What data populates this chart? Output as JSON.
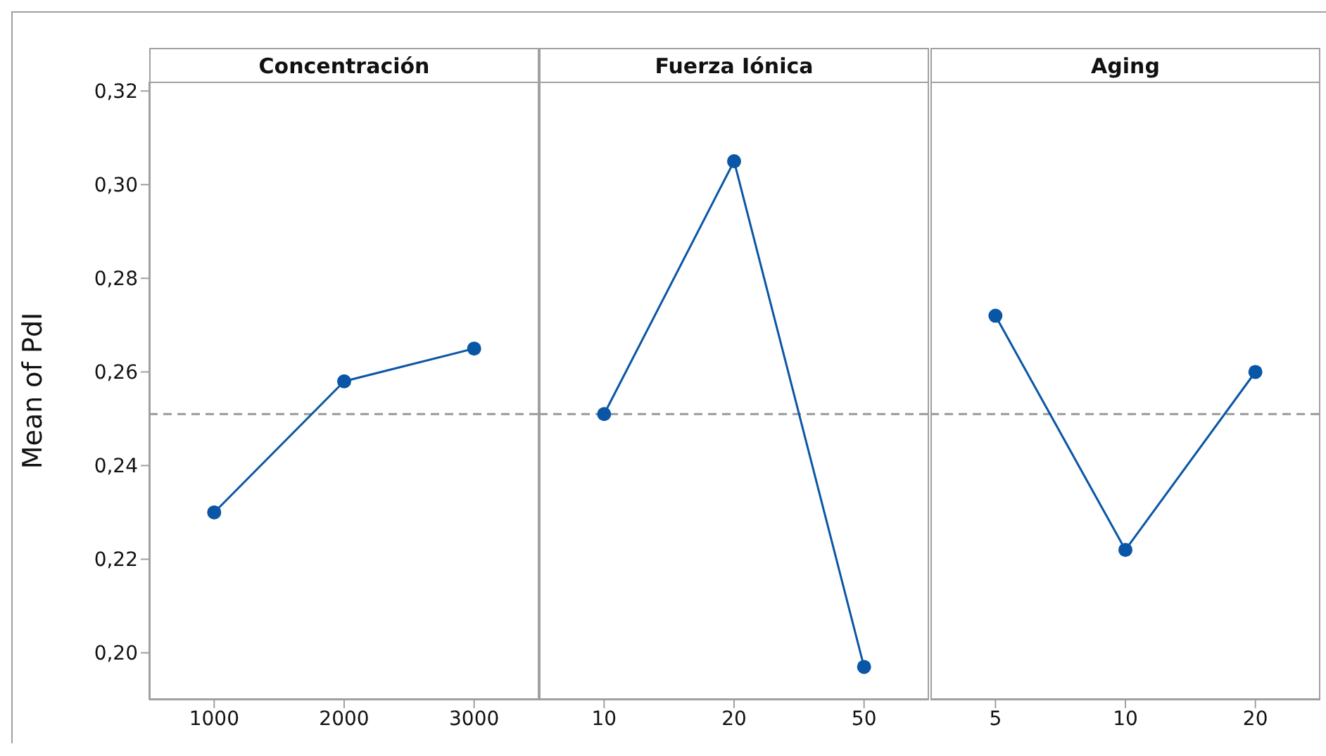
{
  "chart_data": [
    {
      "type": "line",
      "title": "Concentración",
      "ylabel": "Mean of PdI",
      "categories": [
        "1000",
        "2000",
        "3000"
      ],
      "series": [
        {
          "color": "#0a56a6",
          "values": [
            0.23,
            0.258,
            0.265
          ]
        }
      ],
      "ylim": [
        0.19,
        0.322
      ],
      "yticks": [
        {
          "value": 0.2,
          "label": "0,20"
        },
        {
          "value": 0.22,
          "label": "0,22"
        },
        {
          "value": 0.24,
          "label": "0,24"
        },
        {
          "value": 0.26,
          "label": "0,26"
        },
        {
          "value": 0.28,
          "label": "0,28"
        },
        {
          "value": 0.3,
          "label": "0,30"
        },
        {
          "value": 0.32,
          "label": "0,32"
        }
      ],
      "ref_lines": [
        {
          "axis": "y",
          "value": 0.251,
          "color": "#999999",
          "line_style": "dashed"
        }
      ],
      "marker": "circle",
      "grid": false,
      "legend": false
    },
    {
      "type": "line",
      "title": "Fuerza Iónica",
      "categories": [
        "10",
        "20",
        "50"
      ],
      "series": [
        {
          "color": "#0a56a6",
          "values": [
            0.251,
            0.305,
            0.197
          ]
        }
      ],
      "ylim": [
        0.19,
        0.322
      ],
      "tick_labels": "x",
      "ref_lines": [
        {
          "axis": "y",
          "value": 0.251,
          "color": "#999999",
          "line_style": "dashed"
        }
      ],
      "marker": "circle",
      "grid": false,
      "legend": false
    },
    {
      "type": "line",
      "title": "Aging",
      "categories": [
        "5",
        "10",
        "20"
      ],
      "series": [
        {
          "color": "#0a56a6",
          "values": [
            0.272,
            0.222,
            0.26
          ]
        }
      ],
      "ylim": [
        0.19,
        0.322
      ],
      "tick_labels": "x",
      "ref_lines": [
        {
          "axis": "y",
          "value": 0.251,
          "color": "#999999",
          "line_style": "dashed"
        }
      ],
      "marker": "circle",
      "grid": false,
      "legend": false
    }
  ]
}
